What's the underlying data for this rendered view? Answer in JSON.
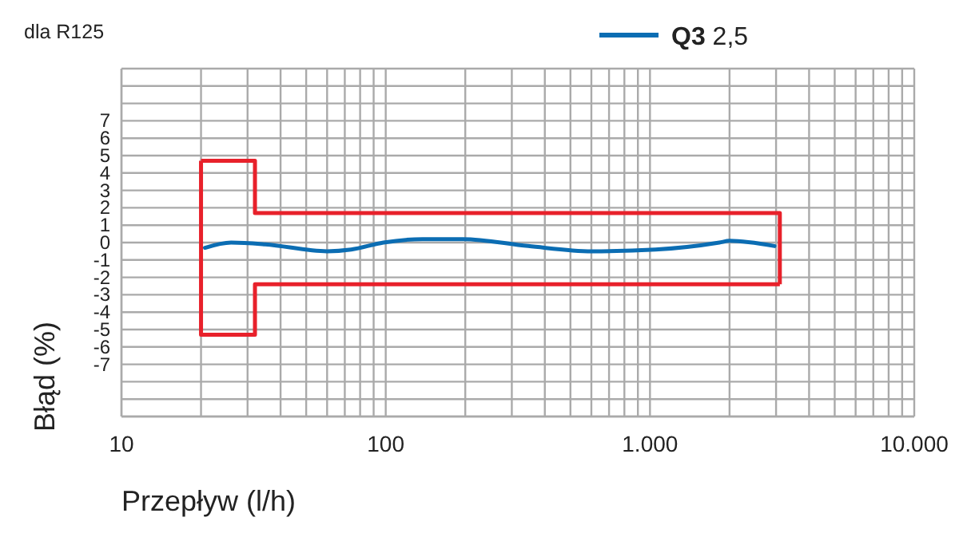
{
  "chart_data": {
    "type": "line",
    "xlabel": "Przepływ (l/h)",
    "ylabel": "Błąd (%)",
    "annotations": [
      "dla R125"
    ],
    "log": "x",
    "grid": true,
    "legend": "top right",
    "marker": "none",
    "line_style": "solid",
    "xlim": [
      10,
      10000
    ],
    "ylim": [
      -10,
      10
    ],
    "xticks": [
      {
        "value": 10,
        "label": "10"
      },
      {
        "value": 20,
        "label": null
      },
      {
        "value": 30,
        "label": null
      },
      {
        "value": 40,
        "label": null
      },
      {
        "value": 50,
        "label": null
      },
      {
        "value": 60,
        "label": null
      },
      {
        "value": 70,
        "label": null
      },
      {
        "value": 80,
        "label": null
      },
      {
        "value": 90,
        "label": null
      },
      {
        "value": 100,
        "label": "100"
      },
      {
        "value": 200,
        "label": null
      },
      {
        "value": 300,
        "label": null
      },
      {
        "value": 400,
        "label": null
      },
      {
        "value": 500,
        "label": null
      },
      {
        "value": 600,
        "label": null
      },
      {
        "value": 700,
        "label": null
      },
      {
        "value": 800,
        "label": null
      },
      {
        "value": 900,
        "label": null
      },
      {
        "value": 1000,
        "label": "1.000"
      },
      {
        "value": 2000,
        "label": null
      },
      {
        "value": 3000,
        "label": null
      },
      {
        "value": 4000,
        "label": null
      },
      {
        "value": 5000,
        "label": null
      },
      {
        "value": 6000,
        "label": null
      },
      {
        "value": 7000,
        "label": null
      },
      {
        "value": 8000,
        "label": null
      },
      {
        "value": 9000,
        "label": null
      },
      {
        "value": 10000,
        "label": "10.000"
      }
    ],
    "yticks": [
      {
        "value": -10,
        "label": null
      },
      {
        "value": -9,
        "label": null
      },
      {
        "value": -8,
        "label": null
      },
      -7,
      -6,
      -5,
      -4,
      -3,
      -2,
      -1,
      0,
      1,
      2,
      3,
      4,
      5,
      6,
      7,
      {
        "value": 8,
        "label": null
      },
      {
        "value": 9,
        "label": null
      },
      {
        "value": 10,
        "label": null
      }
    ],
    "series": [
      {
        "type": "step",
        "color": "#e8212b",
        "x": [
          20,
          32,
          3100,
          3100
        ],
        "values": [
          4.7,
          1.7,
          1.7,
          -2.4
        ]
      },
      {
        "type": "step",
        "color": "#e8212b",
        "x": [
          20,
          20,
          32,
          3100
        ],
        "values": [
          4.7,
          -5.3,
          -2.4,
          -2.4
        ]
      },
      {
        "name": "Q3 2,5",
        "color": "#0b6db3",
        "x": [
          20.7,
          26,
          35,
          60,
          74,
          98,
          138,
          196,
          346,
          602,
          1050,
          1830,
          2000,
          2960
        ],
        "values": [
          -0.3,
          0,
          -0.1,
          -0.5,
          -0.4,
          0,
          0.2,
          0.2,
          -0.2,
          -0.5,
          -0.4,
          0,
          0.1,
          -0.2
        ]
      }
    ]
  }
}
